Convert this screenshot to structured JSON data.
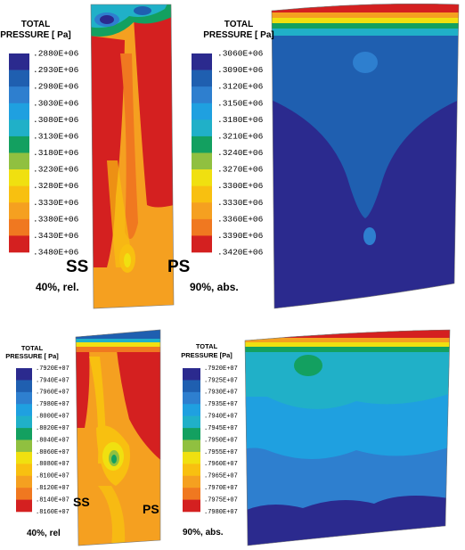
{
  "panels": [
    {
      "legend_title": [
        "TOTAL",
        "PRESSURE [ Pa]"
      ],
      "legend_labels": [
        ".2880E+06",
        ".2930E+06",
        ".2980E+06",
        ".3030E+06",
        ".3080E+06",
        ".3130E+06",
        ".3180E+06",
        ".3230E+06",
        ".3280E+06",
        ".3330E+06",
        ".3380E+06",
        ".3430E+06",
        ".3480E+06"
      ],
      "colors": [
        "#2b2a8e",
        "#1f5fb0",
        "#2e7fcf",
        "#1fa0e0",
        "#20b0c8",
        "#13a060",
        "#90c040",
        "#f0e010",
        "#f8c010",
        "#f5a020",
        "#f07820",
        "#d42020"
      ],
      "caption": "40%, rel.",
      "ss": "SS",
      "ps": "PS"
    },
    {
      "legend_title": [
        "TOTAL",
        "PRESSURE [ Pa]"
      ],
      "legend_labels": [
        ".3060E+06",
        ".3090E+06",
        ".3120E+06",
        ".3150E+06",
        ".3180E+06",
        ".3210E+06",
        ".3240E+06",
        ".3270E+06",
        ".3300E+06",
        ".3330E+06",
        ".3360E+06",
        ".3390E+06",
        ".3420E+06"
      ],
      "colors": [
        "#2b2a8e",
        "#1f5fb0",
        "#2e7fcf",
        "#1fa0e0",
        "#20b0c8",
        "#13a060",
        "#90c040",
        "#f0e010",
        "#f8c010",
        "#f5a020",
        "#f07820",
        "#d42020"
      ],
      "caption": "90%, abs."
    },
    {
      "legend_title": [
        "TOTAL",
        "PRESSURE [ Pa]"
      ],
      "legend_labels": [
        ".7920E+07",
        ".7940E+07",
        ".7960E+07",
        ".7980E+07",
        ".8000E+07",
        ".8020E+07",
        ".8040E+07",
        ".8060E+07",
        ".8080E+07",
        ".8100E+07",
        ".8120E+07",
        ".8140E+07",
        ".8160E+07"
      ],
      "colors": [
        "#2b2a8e",
        "#1f5fb0",
        "#2e7fcf",
        "#1fa0e0",
        "#20b0c8",
        "#13a060",
        "#90c040",
        "#f0e010",
        "#f8c010",
        "#f5a020",
        "#f07820",
        "#d42020"
      ],
      "caption": "40%, rel",
      "ss": "SS",
      "ps": "PS"
    },
    {
      "legend_title": [
        "TOTAL",
        "PRESSURE [Pa]"
      ],
      "legend_labels": [
        ".7920E+07",
        ".7925E+07",
        ".7930E+07",
        ".7935E+07",
        ".7940E+07",
        ".7945E+07",
        ".7950E+07",
        ".7955E+07",
        ".7960E+07",
        ".7965E+07",
        ".7970E+07",
        ".7975E+07",
        ".7980E+07"
      ],
      "colors": [
        "#2b2a8e",
        "#1f5fb0",
        "#2e7fcf",
        "#1fa0e0",
        "#20b0c8",
        "#13a060",
        "#90c040",
        "#f0e010",
        "#f8c010",
        "#f5a020",
        "#f07820",
        "#d42020"
      ],
      "caption": "90%, abs."
    }
  ]
}
